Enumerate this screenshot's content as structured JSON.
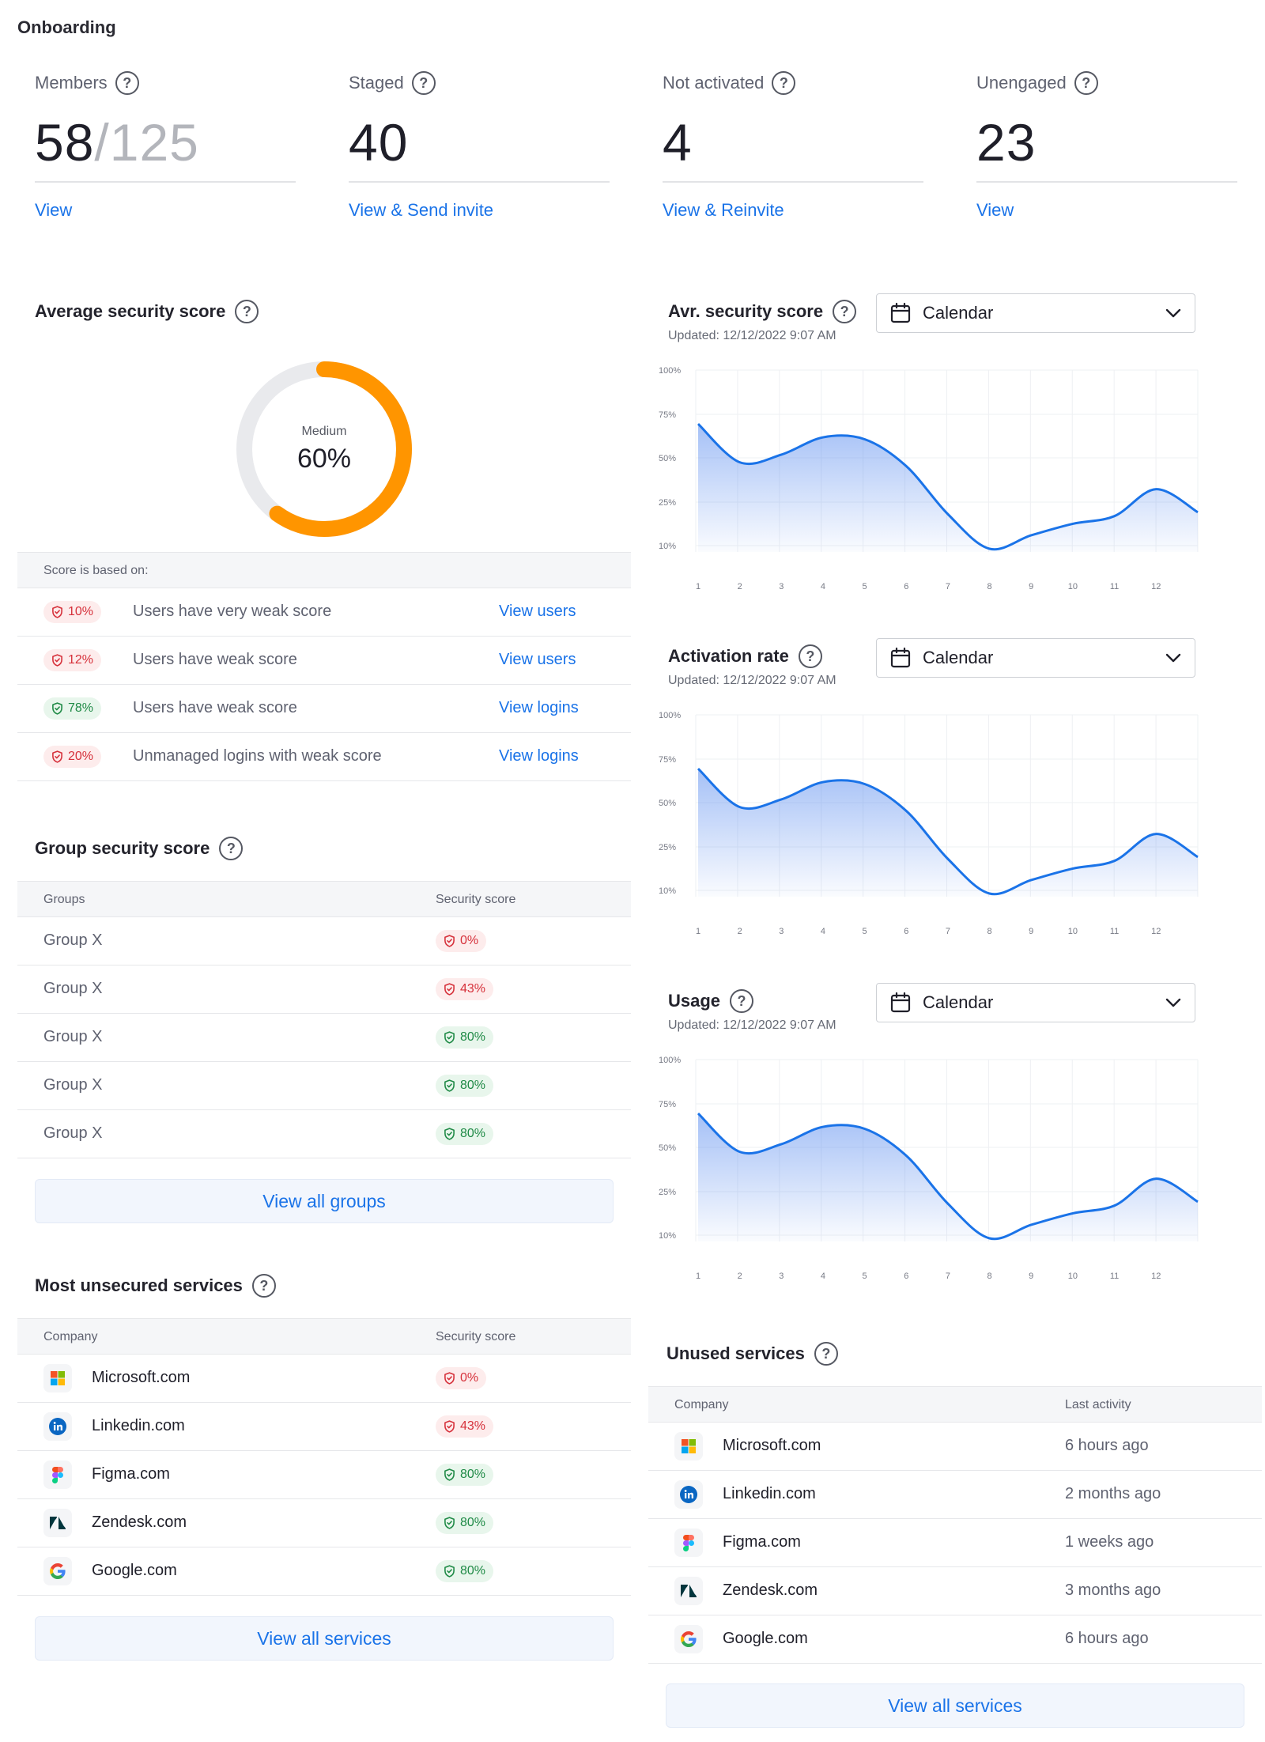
{
  "page": {
    "title": "Onboarding"
  },
  "stats": [
    {
      "label": "Members",
      "value": "58",
      "total": "/125",
      "link": "View"
    },
    {
      "label": "Staged",
      "value": "40",
      "total": "",
      "link": "View & Send invite"
    },
    {
      "label": "Not activated",
      "value": "4",
      "total": "",
      "link": "View & Reinvite"
    },
    {
      "label": "Unengaged",
      "value": "23",
      "total": "",
      "link": "View"
    }
  ],
  "avg_score": {
    "title": "Average security score",
    "level": "Medium",
    "value": "60%",
    "fraction": 0.6,
    "based_on": "Score is based on:",
    "rows": [
      {
        "pct": "10%",
        "status": "red",
        "text": "Users have very weak score",
        "link": "View users"
      },
      {
        "pct": "12%",
        "status": "red",
        "text": "Users have weak score",
        "link": "View users"
      },
      {
        "pct": "78%",
        "status": "green",
        "text": "Users have weak score",
        "link": "View logins"
      },
      {
        "pct": "20%",
        "status": "red",
        "text": "Unmanaged logins with weak score",
        "link": "View logins"
      }
    ]
  },
  "group_score": {
    "title": "Group security score",
    "col_groups": "Groups",
    "col_score": "Security score",
    "rows": [
      {
        "name": "Group X",
        "pct": "0%",
        "status": "red"
      },
      {
        "name": "Group X",
        "pct": "43%",
        "status": "red"
      },
      {
        "name": "Group X",
        "pct": "80%",
        "status": "green"
      },
      {
        "name": "Group X",
        "pct": "80%",
        "status": "green"
      },
      {
        "name": "Group X",
        "pct": "80%",
        "status": "green"
      }
    ],
    "button": "View all groups"
  },
  "unsecured": {
    "title": "Most unsecured services",
    "col_company": "Company",
    "col_score": "Security score",
    "rows": [
      {
        "name": "Microsoft.com",
        "icon": "microsoft-logo-icon",
        "pct": "0%",
        "status": "red"
      },
      {
        "name": "Linkedin.com",
        "icon": "linkedin-logo-icon",
        "pct": "43%",
        "status": "red"
      },
      {
        "name": "Figma.com",
        "icon": "figma-logo-icon",
        "pct": "80%",
        "status": "green"
      },
      {
        "name": "Zendesk.com",
        "icon": "zendesk-logo-icon",
        "pct": "80%",
        "status": "green"
      },
      {
        "name": "Google.com",
        "icon": "google-logo-icon",
        "pct": "80%",
        "status": "green"
      }
    ],
    "button": "View all services"
  },
  "unused": {
    "title": "Unused services",
    "col_company": "Company",
    "col_activity": "Last activity",
    "rows": [
      {
        "name": "Microsoft.com",
        "icon": "microsoft-logo-icon",
        "activity": "6 hours ago"
      },
      {
        "name": "Linkedin.com",
        "icon": "linkedin-logo-icon",
        "activity": "2 months ago"
      },
      {
        "name": "Figma.com",
        "icon": "figma-logo-icon",
        "activity": "1 weeks ago"
      },
      {
        "name": "Zendesk.com",
        "icon": "zendesk-logo-icon",
        "activity": "3 months ago"
      },
      {
        "name": "Google.com",
        "icon": "google-logo-icon",
        "activity": "6 hours ago"
      }
    ],
    "button": "View all services"
  },
  "colors": {
    "accent": "#1a73e8",
    "donut": "#ff9500",
    "red": "#d6313b",
    "green": "#1f8a46"
  },
  "chart_data": [
    {
      "type": "area",
      "title": "Avr. security score",
      "updated": "Updated: 12/12/2022 9:07 AM",
      "select": "Calendar",
      "x": [
        1,
        2,
        3,
        4,
        5,
        6,
        7,
        8,
        9,
        10,
        11,
        12
      ],
      "y_ticks": [
        "100%",
        "75%",
        "50%",
        "25%",
        "10%"
      ],
      "values": [
        72,
        52,
        56,
        65,
        64,
        50,
        25,
        7,
        14,
        20,
        24,
        38
      ],
      "grid": true
    },
    {
      "type": "area",
      "title": "Activation rate",
      "updated": "Updated: 12/12/2022 9:07 AM",
      "select": "Calendar",
      "x": [
        1,
        2,
        3,
        4,
        5,
        6,
        7,
        8,
        9,
        10,
        11,
        12
      ],
      "y_ticks": [
        "100%",
        "75%",
        "50%",
        "25%",
        "10%"
      ],
      "values": [
        72,
        52,
        56,
        65,
        64,
        50,
        25,
        7,
        14,
        20,
        24,
        38
      ],
      "grid": true
    },
    {
      "type": "area",
      "title": "Usage",
      "updated": "Updated: 12/12/2022 9:07 AM",
      "select": "Calendar",
      "x": [
        1,
        2,
        3,
        4,
        5,
        6,
        7,
        8,
        9,
        10,
        11,
        12
      ],
      "y_ticks": [
        "100%",
        "75%",
        "50%",
        "25%",
        "10%"
      ],
      "values": [
        72,
        52,
        56,
        65,
        64,
        50,
        25,
        7,
        14,
        20,
        24,
        38
      ],
      "grid": true
    }
  ]
}
